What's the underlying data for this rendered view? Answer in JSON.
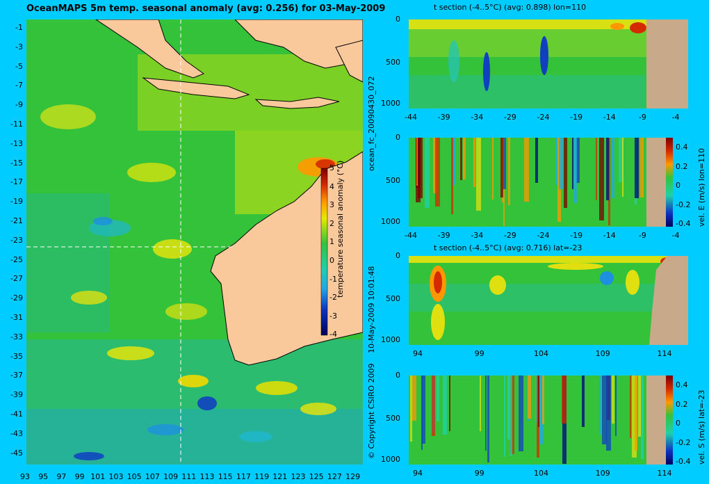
{
  "map": {
    "title": "OceanMAPS 5m temp. seasonal anomaly (avg: 0.256) for 03-May-2009",
    "lat_labels": [
      "-1",
      "-3",
      "-5",
      "-7",
      "-9",
      "-11",
      "-13",
      "-15",
      "-17",
      "-19",
      "-21",
      "-23",
      "-25",
      "-27",
      "-29",
      "-31",
      "-33",
      "-35",
      "-37",
      "-39",
      "-41",
      "-43",
      "-45"
    ],
    "lon_labels": [
      "93",
      "95",
      "97",
      "99",
      "101",
      "103",
      "105",
      "107",
      "109",
      "111",
      "113",
      "115",
      "117",
      "119",
      "121",
      "123",
      "125",
      "127",
      "129"
    ],
    "crosshair": {
      "lat": -23,
      "lon": 110
    },
    "colorbar": {
      "label": "temperature seasonal anomaly (°C)",
      "ticks": [
        "5",
        "4",
        "3",
        "2",
        "1",
        "0",
        "-1",
        "-2",
        "-3",
        "-4"
      ],
      "range": [
        -4,
        5
      ]
    }
  },
  "side_text": {
    "file_id": "ocean_fc_20090430_072",
    "date": "10-May-2009 10:01:48",
    "copyright": "© Copyright CSIRO 2009"
  },
  "panels": {
    "p1": {
      "title": "t section (-4..5°C) (avg: 0.898) lon=110",
      "y_ticks": [
        "0",
        "500",
        "1000"
      ],
      "x_ticks": [
        "-44",
        "-39",
        "-34",
        "-29",
        "-24",
        "-19",
        "-14",
        "-9",
        "-4"
      ]
    },
    "p2": {
      "title": "",
      "y_ticks": [
        "0",
        "500",
        "1000"
      ],
      "x_ticks": [
        "-44",
        "-39",
        "-34",
        "-29",
        "-24",
        "-19",
        "-14",
        "-9",
        "-4"
      ],
      "colorbar_label": "vel. E (m/s) lon=110",
      "colorbar_ticks": [
        "0.4",
        "0.2",
        "0",
        "-0.2",
        "-0.4"
      ]
    },
    "p3": {
      "title": "t section (-4..5°C) (avg: 0.716) lat=-23",
      "y_ticks": [
        "0",
        "500",
        "1000"
      ],
      "x_ticks": [
        "94",
        "99",
        "104",
        "109",
        "114"
      ]
    },
    "p4": {
      "title": "",
      "y_ticks": [
        "0",
        "500",
        "1000"
      ],
      "x_ticks": [
        "94",
        "99",
        "104",
        "109",
        "114"
      ],
      "colorbar_label": "vel. S (m/s) lat=-23",
      "colorbar_ticks": [
        "0.4",
        "0.2",
        "0",
        "-0.2",
        "-0.4"
      ]
    }
  },
  "colors": {
    "background": "#00ccff",
    "land": "#f9c89b",
    "section_land": "#c8a98a",
    "ocean_base": "#34c23a"
  }
}
